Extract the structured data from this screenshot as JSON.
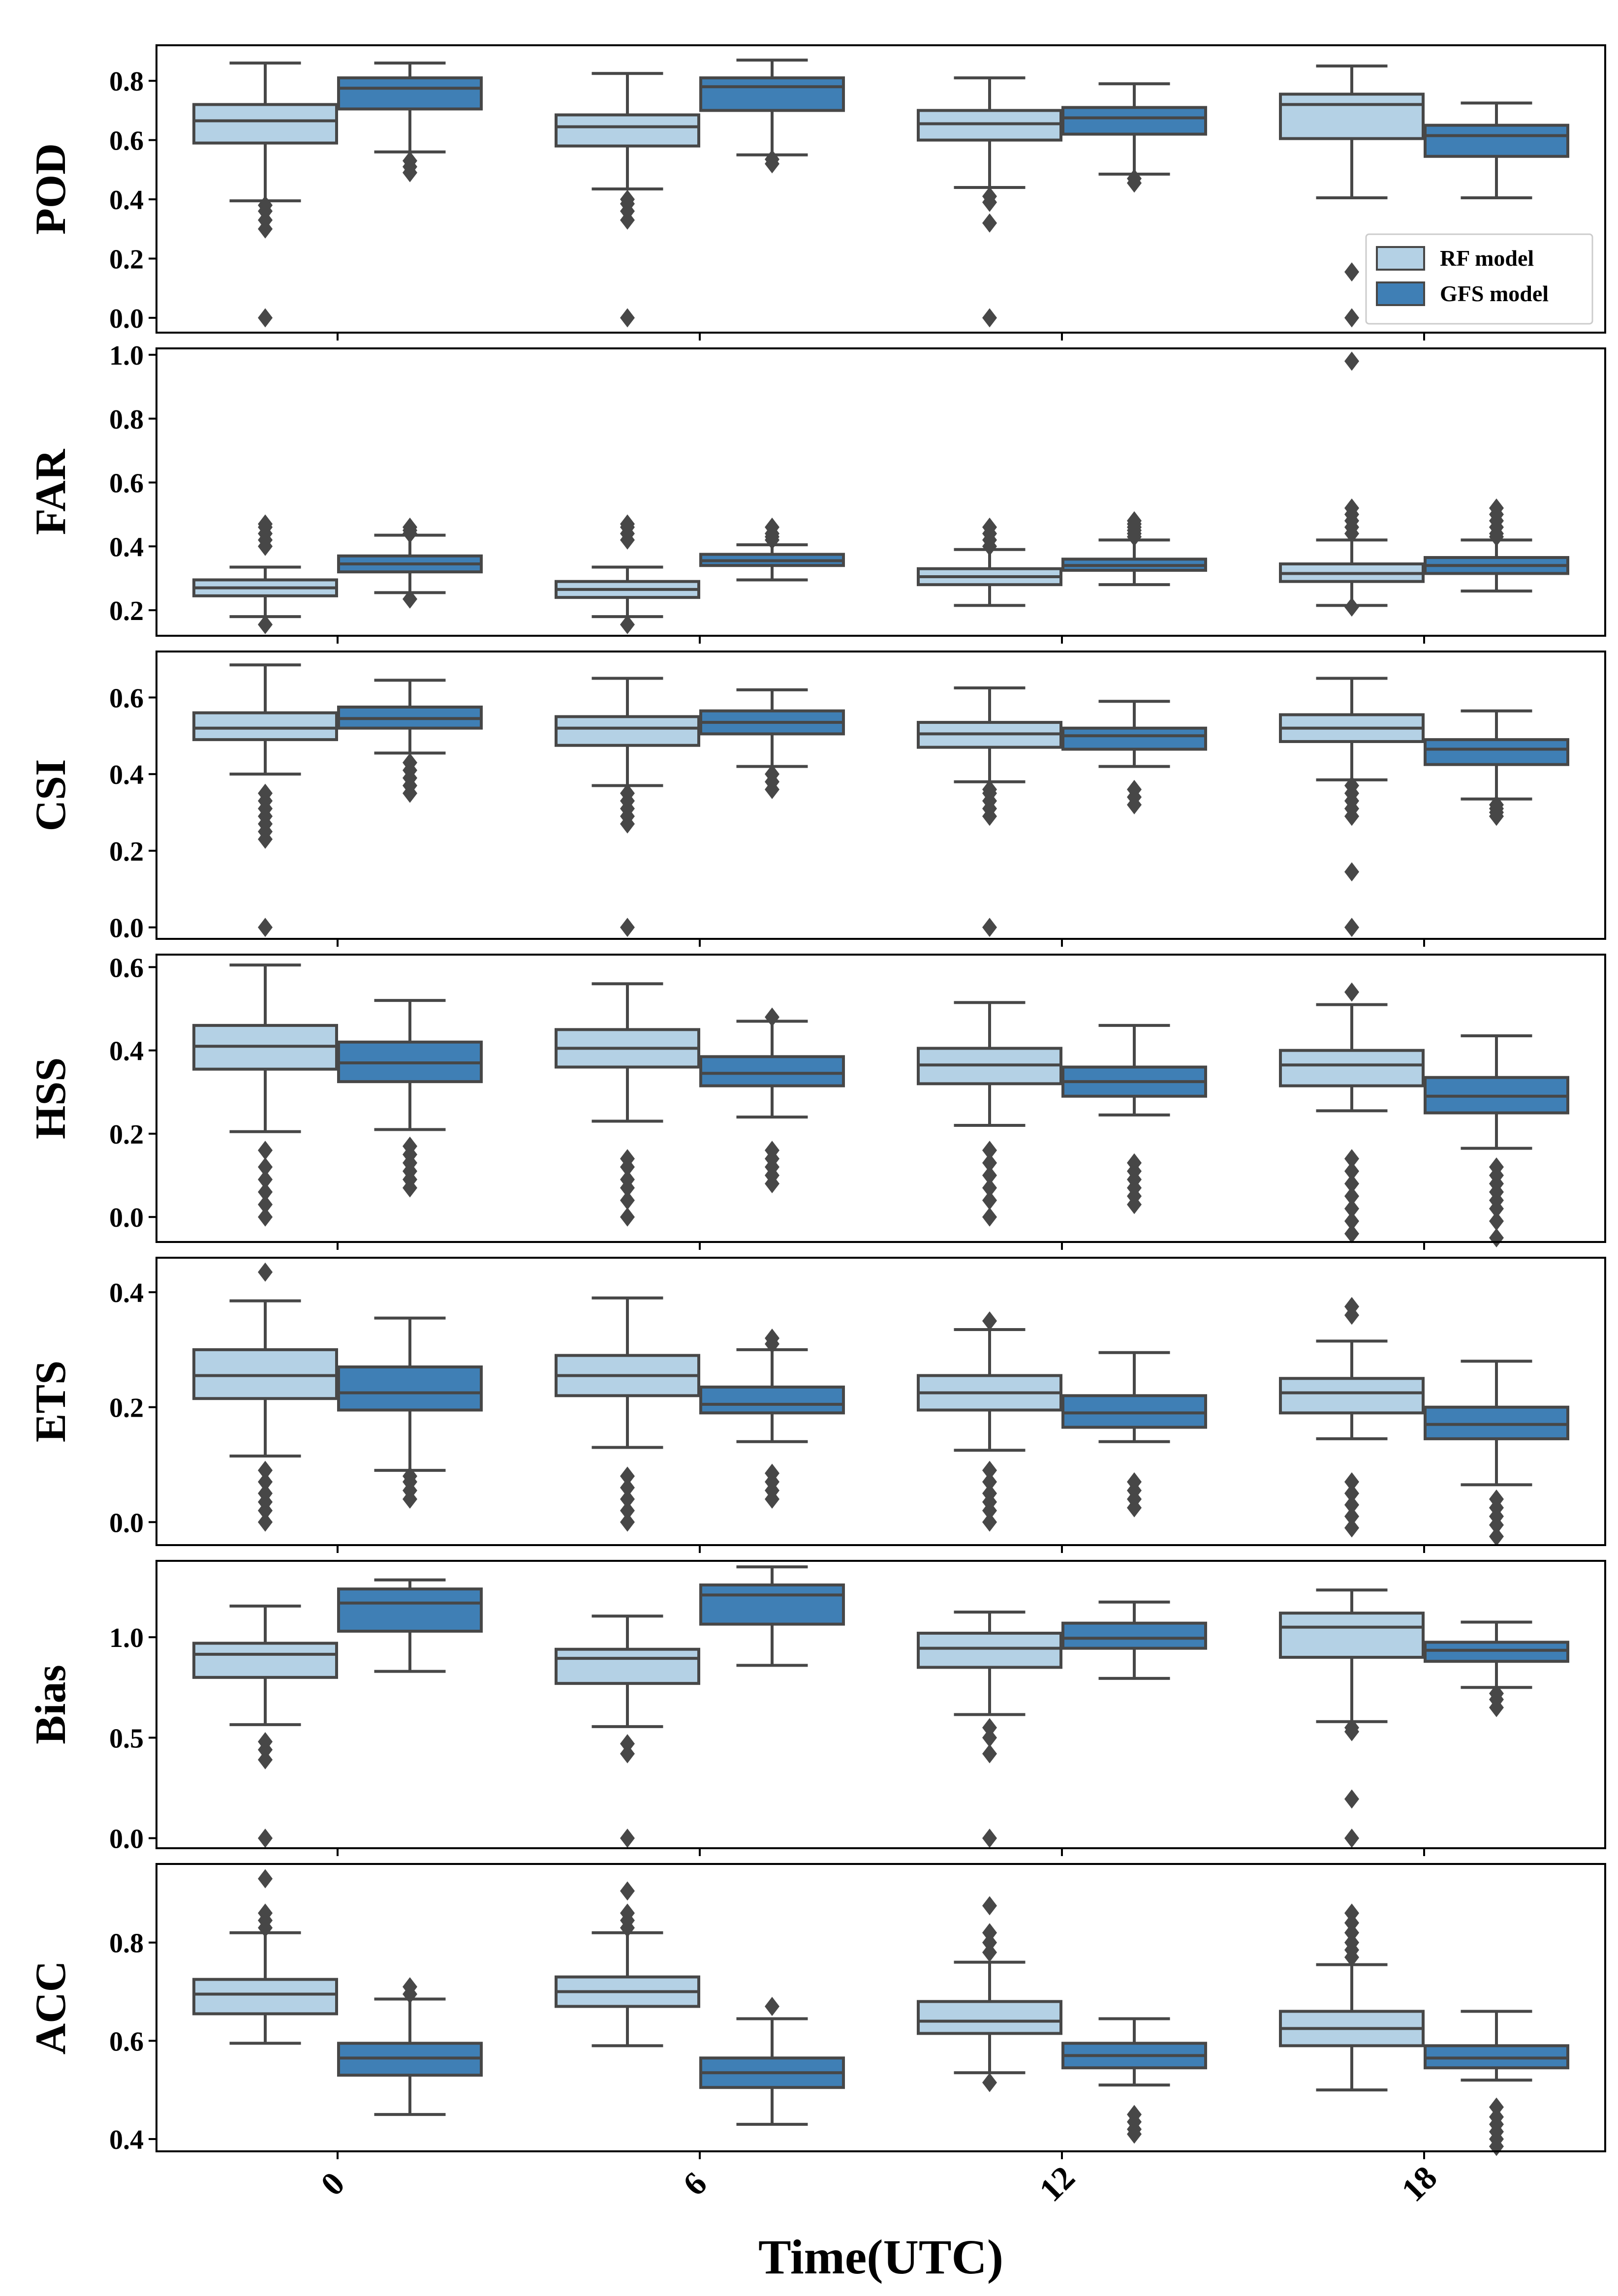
{
  "colors": {
    "rf": "#b4d1e5",
    "gfs": "#3f7fb5",
    "line": "#474747",
    "frame": "#000000"
  },
  "legend": {
    "items": [
      {
        "label": "RF model",
        "series": "rf"
      },
      {
        "label": "GFS model",
        "series": "gfs"
      }
    ],
    "location": "lower-right of POD panel"
  },
  "chart_data": {
    "type": "box",
    "xlabel": "Time(UTC)",
    "categories": [
      "0",
      "6",
      "12",
      "18"
    ],
    "series_order": [
      "rf",
      "gfs"
    ],
    "panels": [
      {
        "ylabel": "POD",
        "ylim": [
          -0.05,
          0.92
        ],
        "yticks": [
          0.0,
          0.2,
          0.4,
          0.6,
          0.8
        ],
        "boxes": {
          "rf": [
            {
              "whislo": 0.395,
              "q1": 0.59,
              "med": 0.665,
              "q3": 0.72,
              "whishi": 0.86,
              "fliers": [
                0.0,
                0.3,
                0.33,
                0.36,
                0.38
              ]
            },
            {
              "whislo": 0.435,
              "q1": 0.58,
              "med": 0.645,
              "q3": 0.685,
              "whishi": 0.825,
              "fliers": [
                0.0,
                0.33,
                0.36,
                0.385,
                0.4
              ]
            },
            {
              "whislo": 0.44,
              "q1": 0.6,
              "med": 0.655,
              "q3": 0.7,
              "whishi": 0.81,
              "fliers": [
                0.0,
                0.32,
                0.39,
                0.41
              ]
            },
            {
              "whislo": 0.405,
              "q1": 0.605,
              "med": 0.72,
              "q3": 0.755,
              "whishi": 0.85,
              "fliers": [
                0.0,
                0.155
              ]
            }
          ],
          "gfs": [
            {
              "whislo": 0.56,
              "q1": 0.705,
              "med": 0.775,
              "q3": 0.81,
              "whishi": 0.86,
              "fliers": [
                0.49,
                0.51,
                0.53
              ]
            },
            {
              "whislo": 0.55,
              "q1": 0.7,
              "med": 0.78,
              "q3": 0.81,
              "whishi": 0.87,
              "fliers": [
                0.52,
                0.535
              ]
            },
            {
              "whislo": 0.485,
              "q1": 0.62,
              "med": 0.675,
              "q3": 0.71,
              "whishi": 0.79,
              "fliers": [
                0.455,
                0.47
              ]
            },
            {
              "whislo": 0.405,
              "q1": 0.545,
              "med": 0.615,
              "q3": 0.65,
              "whishi": 0.725,
              "fliers": []
            }
          ]
        }
      },
      {
        "ylabel": "FAR",
        "ylim": [
          0.12,
          1.02
        ],
        "yticks": [
          0.2,
          0.4,
          0.6,
          0.8,
          1.0
        ],
        "boxes": {
          "rf": [
            {
              "whislo": 0.18,
              "q1": 0.245,
              "med": 0.27,
              "q3": 0.295,
              "whishi": 0.335,
              "fliers": [
                0.155,
                0.4,
                0.42,
                0.44,
                0.46,
                0.47
              ]
            },
            {
              "whislo": 0.18,
              "q1": 0.24,
              "med": 0.265,
              "q3": 0.29,
              "whishi": 0.335,
              "fliers": [
                0.155,
                0.42,
                0.44,
                0.46,
                0.47
              ]
            },
            {
              "whislo": 0.215,
              "q1": 0.28,
              "med": 0.305,
              "q3": 0.33,
              "whishi": 0.39,
              "fliers": [
                0.4,
                0.42,
                0.44,
                0.46
              ]
            },
            {
              "whislo": 0.215,
              "q1": 0.29,
              "med": 0.315,
              "q3": 0.345,
              "whishi": 0.42,
              "fliers": [
                0.21,
                0.44,
                0.46,
                0.48,
                0.5,
                0.52,
                0.98
              ]
            }
          ],
          "gfs": [
            {
              "whislo": 0.255,
              "q1": 0.32,
              "med": 0.345,
              "q3": 0.37,
              "whishi": 0.435,
              "fliers": [
                0.235,
                0.44,
                0.45,
                0.46
              ]
            },
            {
              "whislo": 0.295,
              "q1": 0.34,
              "med": 0.355,
              "q3": 0.375,
              "whishi": 0.405,
              "fliers": [
                0.42,
                0.43,
                0.44,
                0.46
              ]
            },
            {
              "whislo": 0.28,
              "q1": 0.325,
              "med": 0.34,
              "q3": 0.36,
              "whishi": 0.42,
              "fliers": [
                0.43,
                0.44,
                0.45,
                0.46,
                0.47,
                0.48
              ]
            },
            {
              "whislo": 0.26,
              "q1": 0.315,
              "med": 0.34,
              "q3": 0.365,
              "whishi": 0.42,
              "fliers": [
                0.43,
                0.44,
                0.46,
                0.48,
                0.5,
                0.52
              ]
            }
          ]
        }
      },
      {
        "ylabel": "CSI",
        "ylim": [
          -0.03,
          0.72
        ],
        "yticks": [
          0.0,
          0.2,
          0.4,
          0.6
        ],
        "boxes": {
          "rf": [
            {
              "whislo": 0.4,
              "q1": 0.49,
              "med": 0.52,
              "q3": 0.56,
              "whishi": 0.685,
              "fliers": [
                0.0,
                0.23,
                0.25,
                0.27,
                0.29,
                0.31,
                0.33,
                0.35
              ]
            },
            {
              "whislo": 0.37,
              "q1": 0.475,
              "med": 0.52,
              "q3": 0.55,
              "whishi": 0.65,
              "fliers": [
                0.0,
                0.27,
                0.29,
                0.31,
                0.33,
                0.35
              ]
            },
            {
              "whislo": 0.38,
              "q1": 0.47,
              "med": 0.505,
              "q3": 0.535,
              "whishi": 0.625,
              "fliers": [
                0.0,
                0.29,
                0.31,
                0.33,
                0.35,
                0.36
              ]
            },
            {
              "whislo": 0.385,
              "q1": 0.485,
              "med": 0.52,
              "q3": 0.555,
              "whishi": 0.65,
              "fliers": [
                0.0,
                0.145,
                0.29,
                0.31,
                0.33,
                0.35,
                0.37
              ]
            }
          ],
          "gfs": [
            {
              "whislo": 0.455,
              "q1": 0.52,
              "med": 0.545,
              "q3": 0.575,
              "whishi": 0.645,
              "fliers": [
                0.35,
                0.37,
                0.39,
                0.41,
                0.43
              ]
            },
            {
              "whislo": 0.42,
              "q1": 0.505,
              "med": 0.535,
              "q3": 0.565,
              "whishi": 0.62,
              "fliers": [
                0.36,
                0.38,
                0.4
              ]
            },
            {
              "whislo": 0.42,
              "q1": 0.465,
              "med": 0.5,
              "q3": 0.52,
              "whishi": 0.59,
              "fliers": [
                0.32,
                0.34,
                0.36
              ]
            },
            {
              "whislo": 0.335,
              "q1": 0.425,
              "med": 0.465,
              "q3": 0.49,
              "whishi": 0.565,
              "fliers": [
                0.29,
                0.3,
                0.31,
                0.32
              ]
            }
          ]
        }
      },
      {
        "ylabel": "HSS",
        "ylim": [
          -0.06,
          0.63
        ],
        "yticks": [
          0.0,
          0.2,
          0.4,
          0.6
        ],
        "boxes": {
          "rf": [
            {
              "whislo": 0.205,
              "q1": 0.355,
              "med": 0.41,
              "q3": 0.46,
              "whishi": 0.605,
              "fliers": [
                0.0,
                0.03,
                0.06,
                0.09,
                0.12,
                0.16
              ]
            },
            {
              "whislo": 0.23,
              "q1": 0.36,
              "med": 0.405,
              "q3": 0.45,
              "whishi": 0.56,
              "fliers": [
                0.0,
                0.04,
                0.07,
                0.09,
                0.12,
                0.14
              ]
            },
            {
              "whislo": 0.22,
              "q1": 0.32,
              "med": 0.365,
              "q3": 0.405,
              "whishi": 0.515,
              "fliers": [
                0.0,
                0.04,
                0.07,
                0.1,
                0.13,
                0.16
              ]
            },
            {
              "whislo": 0.255,
              "q1": 0.315,
              "med": 0.365,
              "q3": 0.4,
              "whishi": 0.51,
              "fliers": [
                -0.04,
                -0.01,
                0.02,
                0.05,
                0.08,
                0.11,
                0.14,
                0.54
              ]
            }
          ],
          "gfs": [
            {
              "whislo": 0.21,
              "q1": 0.325,
              "med": 0.37,
              "q3": 0.42,
              "whishi": 0.52,
              "fliers": [
                0.07,
                0.09,
                0.11,
                0.13,
                0.15,
                0.17
              ]
            },
            {
              "whislo": 0.24,
              "q1": 0.315,
              "med": 0.345,
              "q3": 0.385,
              "whishi": 0.47,
              "fliers": [
                0.08,
                0.1,
                0.12,
                0.14,
                0.16,
                0.48
              ]
            },
            {
              "whislo": 0.245,
              "q1": 0.29,
              "med": 0.325,
              "q3": 0.36,
              "whishi": 0.46,
              "fliers": [
                0.03,
                0.05,
                0.07,
                0.09,
                0.11,
                0.13
              ]
            },
            {
              "whislo": 0.165,
              "q1": 0.25,
              "med": 0.29,
              "q3": 0.335,
              "whishi": 0.435,
              "fliers": [
                -0.05,
                -0.01,
                0.02,
                0.04,
                0.06,
                0.08,
                0.1,
                0.12
              ]
            }
          ]
        }
      },
      {
        "ylabel": "ETS",
        "ylim": [
          -0.04,
          0.46
        ],
        "yticks": [
          0.0,
          0.2,
          0.4
        ],
        "boxes": {
          "rf": [
            {
              "whislo": 0.115,
              "q1": 0.215,
              "med": 0.255,
              "q3": 0.3,
              "whishi": 0.385,
              "fliers": [
                0.0,
                0.02,
                0.035,
                0.05,
                0.07,
                0.09,
                0.435
              ]
            },
            {
              "whislo": 0.13,
              "q1": 0.22,
              "med": 0.255,
              "q3": 0.29,
              "whishi": 0.39,
              "fliers": [
                0.0,
                0.02,
                0.04,
                0.06,
                0.08
              ]
            },
            {
              "whislo": 0.125,
              "q1": 0.195,
              "med": 0.225,
              "q3": 0.255,
              "whishi": 0.335,
              "fliers": [
                0.0,
                0.02,
                0.035,
                0.05,
                0.07,
                0.09,
                0.35
              ]
            },
            {
              "whislo": 0.145,
              "q1": 0.19,
              "med": 0.225,
              "q3": 0.25,
              "whishi": 0.315,
              "fliers": [
                -0.01,
                0.01,
                0.03,
                0.05,
                0.07,
                0.36,
                0.375
              ]
            }
          ],
          "gfs": [
            {
              "whislo": 0.09,
              "q1": 0.195,
              "med": 0.225,
              "q3": 0.27,
              "whishi": 0.355,
              "fliers": [
                0.04,
                0.055,
                0.07,
                0.08
              ]
            },
            {
              "whislo": 0.14,
              "q1": 0.19,
              "med": 0.205,
              "q3": 0.235,
              "whishi": 0.3,
              "fliers": [
                0.04,
                0.055,
                0.07,
                0.085,
                0.31,
                0.32
              ]
            },
            {
              "whislo": 0.14,
              "q1": 0.165,
              "med": 0.19,
              "q3": 0.22,
              "whishi": 0.295,
              "fliers": [
                0.025,
                0.04,
                0.055,
                0.07
              ]
            },
            {
              "whislo": 0.065,
              "q1": 0.145,
              "med": 0.17,
              "q3": 0.2,
              "whishi": 0.28,
              "fliers": [
                -0.025,
                -0.005,
                0.01,
                0.025,
                0.04
              ]
            }
          ]
        }
      },
      {
        "ylabel": "Bias",
        "ylim": [
          -0.05,
          1.38
        ],
        "yticks": [
          0.0,
          0.5,
          1.0
        ],
        "boxes": {
          "rf": [
            {
              "whislo": 0.565,
              "q1": 0.8,
              "med": 0.915,
              "q3": 0.97,
              "whishi": 1.155,
              "fliers": [
                0.0,
                0.39,
                0.44,
                0.48
              ]
            },
            {
              "whislo": 0.555,
              "q1": 0.77,
              "med": 0.895,
              "q3": 0.94,
              "whishi": 1.105,
              "fliers": [
                0.0,
                0.42,
                0.47
              ]
            },
            {
              "whislo": 0.615,
              "q1": 0.85,
              "med": 0.945,
              "q3": 1.02,
              "whishi": 1.125,
              "fliers": [
                0.0,
                0.42,
                0.5,
                0.55
              ]
            },
            {
              "whislo": 0.58,
              "q1": 0.9,
              "med": 1.05,
              "q3": 1.12,
              "whishi": 1.235,
              "fliers": [
                0.0,
                0.195,
                0.53,
                0.55
              ]
            }
          ],
          "gfs": [
            {
              "whislo": 0.83,
              "q1": 1.03,
              "med": 1.17,
              "q3": 1.24,
              "whishi": 1.285,
              "fliers": []
            },
            {
              "whislo": 0.86,
              "q1": 1.065,
              "med": 1.21,
              "q3": 1.26,
              "whishi": 1.35,
              "fliers": []
            },
            {
              "whislo": 0.795,
              "q1": 0.945,
              "med": 0.995,
              "q3": 1.07,
              "whishi": 1.175,
              "fliers": []
            },
            {
              "whislo": 0.75,
              "q1": 0.88,
              "med": 0.935,
              "q3": 0.975,
              "whishi": 1.075,
              "fliers": [
                0.65,
                0.69,
                0.72
              ]
            }
          ]
        }
      },
      {
        "ylabel": "ACC",
        "ylim": [
          0.375,
          0.96
        ],
        "yticks": [
          0.4,
          0.6,
          0.8
        ],
        "boxes": {
          "rf": [
            {
              "whislo": 0.595,
              "q1": 0.655,
              "med": 0.695,
              "q3": 0.725,
              "whishi": 0.82,
              "fliers": [
                0.83,
                0.845,
                0.86,
                0.93
              ]
            },
            {
              "whislo": 0.59,
              "q1": 0.67,
              "med": 0.7,
              "q3": 0.73,
              "whishi": 0.82,
              "fliers": [
                0.83,
                0.845,
                0.86,
                0.905
              ]
            },
            {
              "whislo": 0.535,
              "q1": 0.615,
              "med": 0.64,
              "q3": 0.68,
              "whishi": 0.76,
              "fliers": [
                0.515,
                0.78,
                0.8,
                0.82,
                0.875
              ]
            },
            {
              "whislo": 0.5,
              "q1": 0.59,
              "med": 0.625,
              "q3": 0.66,
              "whishi": 0.755,
              "fliers": [
                0.77,
                0.785,
                0.8,
                0.82,
                0.84,
                0.86
              ]
            }
          ],
          "gfs": [
            {
              "whislo": 0.45,
              "q1": 0.53,
              "med": 0.565,
              "q3": 0.595,
              "whishi": 0.685,
              "fliers": [
                0.695,
                0.71
              ]
            },
            {
              "whislo": 0.43,
              "q1": 0.505,
              "med": 0.535,
              "q3": 0.565,
              "whishi": 0.645,
              "fliers": [
                0.67
              ]
            },
            {
              "whislo": 0.51,
              "q1": 0.545,
              "med": 0.57,
              "q3": 0.595,
              "whishi": 0.645,
              "fliers": [
                0.41,
                0.42,
                0.435,
                0.45
              ]
            },
            {
              "whislo": 0.52,
              "q1": 0.545,
              "med": 0.565,
              "q3": 0.59,
              "whishi": 0.66,
              "fliers": [
                0.385,
                0.4,
                0.415,
                0.43,
                0.445,
                0.465
              ]
            }
          ]
        }
      }
    ]
  }
}
